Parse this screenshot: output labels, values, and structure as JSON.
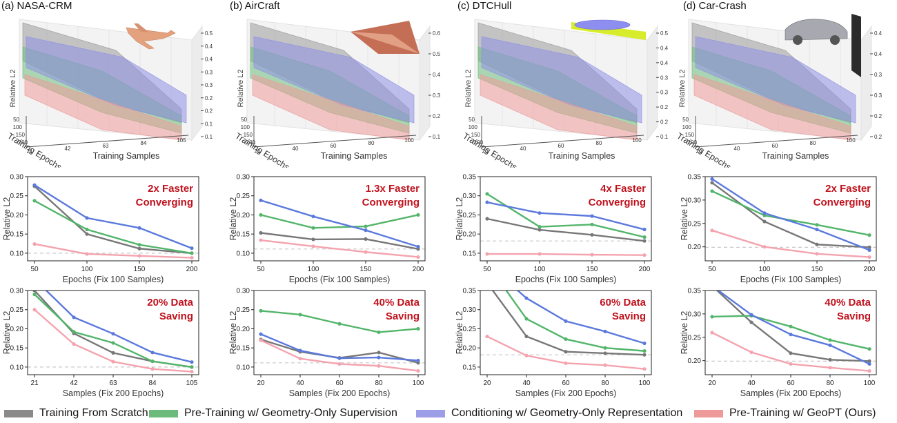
{
  "colors": {
    "scratch": "#777777",
    "geo_sup": "#52b56a",
    "cond": "#5b79dd",
    "geopt": "#f4a3ae",
    "highlight": "#c0121d",
    "ref_line": "#c8c8c8"
  },
  "legend": [
    {
      "key": "scratch",
      "label": "Training From Scratch",
      "color": "#8a8a8a"
    },
    {
      "key": "geo_sup",
      "label": "Pre-Training w/ Geometry-Only Supervision",
      "color": "#6dbb7b"
    },
    {
      "key": "cond",
      "label": "Conditioning w/ Geometry-Only Representation",
      "color": "#9c9ee8"
    },
    {
      "key": "geopt",
      "label": "Pre-Training w/ GeoPT (Ours)",
      "color": "#ee9a9a"
    }
  ],
  "panels": [
    {
      "title": "(a) NASA-CRM",
      "icon": "airplane-icon",
      "surface": {
        "zlabel": "Relative L2",
        "xlabel": "Training Samples",
        "ylabel": "Training Epochs",
        "xticks": [
          "21",
          "42",
          "63",
          "84",
          "105"
        ],
        "yticks": [
          "50",
          "100",
          "150",
          "200"
        ],
        "zticks": [
          "0.50",
          "0.45",
          "0.40",
          "0.35",
          "0.30",
          "0.25",
          "0.20",
          "0.15",
          "0.10"
        ]
      },
      "epochs_chart": {
        "type": "line",
        "highlight_lines": [
          "2x Faster",
          "Converging"
        ],
        "xlabel": "Epochs (Fix 100 Samples)",
        "ylabel": "Relative L2",
        "x": [
          50,
          100,
          150,
          200
        ],
        "xticks": [
          "50",
          "100",
          "150",
          "200"
        ],
        "ylim": [
          0.08,
          0.3
        ],
        "yticks": [
          0.1,
          0.15,
          0.2,
          0.25,
          0.3
        ],
        "ytick_labels": [
          "0.10",
          "0.15",
          "0.20",
          "0.25",
          "0.30"
        ],
        "ref_y": 0.1,
        "series": [
          {
            "key": "scratch",
            "values": [
              0.275,
              0.15,
              0.112,
              0.1
            ]
          },
          {
            "key": "geo_sup",
            "values": [
              0.237,
              0.162,
              0.122,
              0.1
            ]
          },
          {
            "key": "cond",
            "values": [
              0.278,
              0.192,
              0.166,
              0.113
            ]
          },
          {
            "key": "geopt",
            "values": [
              0.124,
              0.098,
              0.093,
              0.088
            ]
          }
        ]
      },
      "samples_chart": {
        "type": "line",
        "highlight_lines": [
          "20% Data",
          "Saving"
        ],
        "xlabel": "Samples (Fix 200 Epochs)",
        "ylabel": "Relative L2",
        "x": [
          21,
          42,
          63,
          84,
          105
        ],
        "xticks": [
          "21",
          "42",
          "63",
          "84",
          "105"
        ],
        "ylim": [
          0.08,
          0.3
        ],
        "yticks": [
          0.1,
          0.15,
          0.2,
          0.25,
          0.3
        ],
        "ytick_labels": [
          "0.10",
          "0.15",
          "0.20",
          "0.25",
          "0.30"
        ],
        "ref_y": 0.1,
        "series": [
          {
            "key": "scratch",
            "values": [
              0.3,
              0.188,
              0.137,
              0.115,
              0.1
            ]
          },
          {
            "key": "geo_sup",
            "values": [
              0.29,
              0.192,
              0.163,
              0.115,
              0.1
            ]
          },
          {
            "key": "cond",
            "values": [
              0.33,
              0.23,
              0.187,
              0.138,
              0.113
            ]
          },
          {
            "key": "geopt",
            "values": [
              0.25,
              0.16,
              0.114,
              0.095,
              0.088
            ]
          }
        ]
      }
    },
    {
      "title": "(b) AirCraft",
      "icon": "aircraft-wing-icon",
      "surface": {
        "zlabel": "Relative L2",
        "xlabel": "Training Samples",
        "ylabel": "Training Epochs",
        "xticks": [
          "20",
          "40",
          "60",
          "80",
          "100"
        ],
        "yticks": [
          "50",
          "100",
          "150",
          "200"
        ],
        "zticks": [
          "0.6",
          "0.5",
          "0.4",
          "0.3",
          "0.2",
          "0.1"
        ]
      },
      "epochs_chart": {
        "type": "line",
        "highlight_lines": [
          "1.3x Faster",
          "Converging"
        ],
        "xlabel": "Epochs (Fix 100 Samples)",
        "ylabel": "Relative L2",
        "x": [
          50,
          100,
          150,
          200
        ],
        "xticks": [
          "50",
          "100",
          "150",
          "200"
        ],
        "ylim": [
          0.08,
          0.3
        ],
        "yticks": [
          0.1,
          0.15,
          0.2,
          0.25,
          0.3
        ],
        "ytick_labels": [
          "0.10",
          "0.15",
          "0.20",
          "0.25",
          "0.30"
        ],
        "ref_y": 0.111,
        "series": [
          {
            "key": "scratch",
            "values": [
              0.153,
              0.136,
              0.137,
              0.111
            ]
          },
          {
            "key": "geo_sup",
            "values": [
              0.2,
              0.166,
              0.17,
              0.2
            ]
          },
          {
            "key": "cond",
            "values": [
              0.238,
              0.196,
              0.16,
              0.117
            ]
          },
          {
            "key": "geopt",
            "values": [
              0.134,
              0.118,
              0.103,
              0.09
            ]
          }
        ]
      },
      "samples_chart": {
        "type": "line",
        "highlight_lines": [
          "40% Data",
          "Saving"
        ],
        "xlabel": "Samples (Fix 200 Epochs)",
        "ylabel": "Relative L2",
        "x": [
          20,
          40,
          60,
          80,
          100
        ],
        "xticks": [
          "20",
          "40",
          "60",
          "80",
          "100"
        ],
        "ylim": [
          0.08,
          0.3
        ],
        "yticks": [
          0.1,
          0.15,
          0.2,
          0.25,
          0.3
        ],
        "ytick_labels": [
          "0.10",
          "0.15",
          "0.20",
          "0.25",
          "0.30"
        ],
        "ref_y": 0.111,
        "series": [
          {
            "key": "scratch",
            "values": [
              0.172,
              0.14,
              0.124,
              0.138,
              0.111
            ]
          },
          {
            "key": "geo_sup",
            "values": [
              0.247,
              0.237,
              0.213,
              0.191,
              0.2
            ]
          },
          {
            "key": "cond",
            "values": [
              0.186,
              0.143,
              0.123,
              0.125,
              0.117
            ]
          },
          {
            "key": "geopt",
            "values": [
              0.17,
              0.122,
              0.108,
              0.103,
              0.09
            ]
          }
        ]
      }
    },
    {
      "title": "(c) DTCHull",
      "icon": "ship-hull-icon",
      "surface": {
        "zlabel": "Relative L2",
        "xlabel": "Training Samples",
        "ylabel": "Training Epochs",
        "xticks": [
          "20",
          "40",
          "60",
          "80",
          "100"
        ],
        "yticks": [
          "50",
          "100",
          "150",
          "200"
        ],
        "zticks": [
          "0.50",
          "0.45",
          "0.40",
          "0.35",
          "0.30",
          "0.25",
          "0.20",
          "0.15"
        ]
      },
      "epochs_chart": {
        "type": "line",
        "highlight_lines": [
          "4x Faster",
          "Converging"
        ],
        "xlabel": "Epochs (Fix 100 Samples)",
        "ylabel": "Relative L2",
        "x": [
          50,
          100,
          150,
          200
        ],
        "xticks": [
          "50",
          "100",
          "150",
          "200"
        ],
        "ylim": [
          0.13,
          0.35
        ],
        "yticks": [
          0.15,
          0.2,
          0.25,
          0.3,
          0.35
        ],
        "ytick_labels": [
          "0.15",
          "0.20",
          "0.25",
          "0.30",
          "0.35"
        ],
        "ref_y": 0.182,
        "series": [
          {
            "key": "scratch",
            "values": [
              0.24,
              0.211,
              0.198,
              0.182
            ]
          },
          {
            "key": "geo_sup",
            "values": [
              0.305,
              0.219,
              0.225,
              0.192
            ]
          },
          {
            "key": "cond",
            "values": [
              0.283,
              0.255,
              0.247,
              0.212
            ]
          },
          {
            "key": "geopt",
            "values": [
              0.148,
              0.148,
              0.146,
              0.145
            ]
          }
        ]
      },
      "samples_chart": {
        "type": "line",
        "highlight_lines": [
          "60% Data",
          "Saving"
        ],
        "xlabel": "Samples (Fix 200 Epochs)",
        "ylabel": "Relative L2",
        "x": [
          20,
          40,
          60,
          80,
          100
        ],
        "xticks": [
          "20",
          "40",
          "60",
          "80",
          "100"
        ],
        "ylim": [
          0.13,
          0.35
        ],
        "yticks": [
          0.15,
          0.2,
          0.25,
          0.3,
          0.35
        ],
        "ytick_labels": [
          "0.15",
          "0.20",
          "0.25",
          "0.30",
          "0.35"
        ],
        "ref_y": 0.182,
        "series": [
          {
            "key": "scratch",
            "values": [
              0.37,
              0.23,
              0.19,
              0.186,
              0.182
            ]
          },
          {
            "key": "geo_sup",
            "values": [
              0.42,
              0.276,
              0.223,
              0.2,
              0.192
            ]
          },
          {
            "key": "cond",
            "values": [
              0.42,
              0.33,
              0.27,
              0.243,
              0.212
            ]
          },
          {
            "key": "geopt",
            "values": [
              0.23,
              0.18,
              0.16,
              0.155,
              0.145
            ]
          }
        ]
      }
    },
    {
      "title": "(d) Car-Crash",
      "icon": "car-crash-icon",
      "surface": {
        "zlabel": "Relative L2",
        "xlabel": "Training Samples",
        "ylabel": "Training Epochs",
        "xticks": [
          "20",
          "40",
          "60",
          "80",
          "100"
        ],
        "yticks": [
          "50",
          "100",
          "150",
          "200"
        ],
        "zticks": [
          "0.45",
          "0.40",
          "0.35",
          "0.30",
          "0.25",
          "0.20"
        ]
      },
      "epochs_chart": {
        "type": "line",
        "highlight_lines": [
          "2x Faster",
          "Converging"
        ],
        "xlabel": "Epochs (Fix 100 Samples)",
        "ylabel": "Relative L2",
        "x": [
          50,
          100,
          150,
          200
        ],
        "xticks": [
          "50",
          "100",
          "150",
          "200"
        ],
        "ylim": [
          0.17,
          0.35
        ],
        "yticks": [
          0.2,
          0.25,
          0.3,
          0.35
        ],
        "ytick_labels": [
          "0.20",
          "0.25",
          "0.30",
          "0.35"
        ],
        "ref_y": 0.199,
        "series": [
          {
            "key": "scratch",
            "values": [
              0.337,
              0.254,
              0.205,
              0.199
            ]
          },
          {
            "key": "geo_sup",
            "values": [
              0.319,
              0.267,
              0.247,
              0.225
            ]
          },
          {
            "key": "cond",
            "values": [
              0.345,
              0.272,
              0.237,
              0.193
            ]
          },
          {
            "key": "geopt",
            "values": [
              0.235,
              0.2,
              0.185,
              0.178
            ]
          }
        ]
      },
      "samples_chart": {
        "type": "line",
        "highlight_lines": [
          "40% Data",
          "Saving"
        ],
        "xlabel": "Samples (Fix 200 Epochs)",
        "ylabel": "Relative L2",
        "x": [
          20,
          40,
          60,
          80,
          100
        ],
        "xticks": [
          "20",
          "40",
          "60",
          "80",
          "100"
        ],
        "ylim": [
          0.17,
          0.35
        ],
        "yticks": [
          0.2,
          0.25,
          0.3,
          0.35
        ],
        "ytick_labels": [
          "0.20",
          "0.25",
          "0.30",
          "0.35"
        ],
        "ref_y": 0.199,
        "series": [
          {
            "key": "scratch",
            "values": [
              0.36,
              0.282,
              0.216,
              0.202,
              0.199
            ]
          },
          {
            "key": "geo_sup",
            "values": [
              0.294,
              0.296,
              0.273,
              0.244,
              0.225
            ]
          },
          {
            "key": "cond",
            "values": [
              0.36,
              0.298,
              0.256,
              0.233,
              0.193
            ]
          },
          {
            "key": "geopt",
            "values": [
              0.26,
              0.218,
              0.193,
              0.185,
              0.178
            ]
          }
        ]
      }
    }
  ]
}
